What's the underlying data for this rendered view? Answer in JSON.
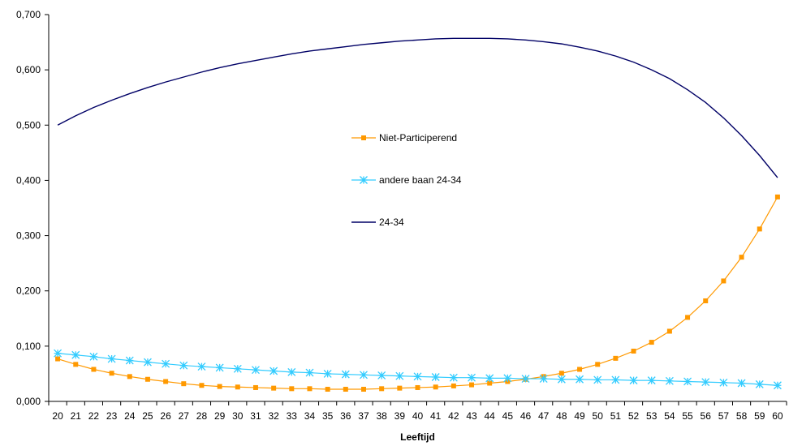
{
  "chart_data": {
    "type": "line",
    "title": "",
    "xlabel": "Leeftijd",
    "ylabel": "",
    "x": [
      20,
      21,
      22,
      23,
      24,
      25,
      26,
      27,
      28,
      29,
      30,
      31,
      32,
      33,
      34,
      35,
      36,
      37,
      38,
      39,
      40,
      41,
      42,
      43,
      44,
      45,
      46,
      47,
      48,
      49,
      50,
      51,
      52,
      53,
      54,
      55,
      56,
      57,
      58,
      59,
      60
    ],
    "ylim": [
      0,
      0.7
    ],
    "yticks": [
      "0,000",
      "0,100",
      "0,200",
      "0,300",
      "0,400",
      "0,500",
      "0,600",
      "0,700"
    ],
    "ytick_values": [
      0,
      0.1,
      0.2,
      0.3,
      0.4,
      0.5,
      0.6,
      0.7
    ],
    "grid": false,
    "legend_position": "center",
    "series": [
      {
        "name": "Niet-Participerend",
        "color": "#FF9900",
        "marker": "square",
        "values": [
          0.077,
          0.067,
          0.058,
          0.051,
          0.045,
          0.04,
          0.036,
          0.032,
          0.029,
          0.027,
          0.026,
          0.025,
          0.024,
          0.023,
          0.023,
          0.022,
          0.022,
          0.022,
          0.023,
          0.024,
          0.025,
          0.026,
          0.028,
          0.03,
          0.033,
          0.036,
          0.04,
          0.045,
          0.051,
          0.058,
          0.067,
          0.078,
          0.091,
          0.107,
          0.127,
          0.152,
          0.182,
          0.218,
          0.261,
          0.312,
          0.37
        ]
      },
      {
        "name": "andere baan 24-34",
        "color": "#33CCFF",
        "marker": "star",
        "values": [
          0.087,
          0.084,
          0.081,
          0.077,
          0.074,
          0.071,
          0.068,
          0.065,
          0.063,
          0.061,
          0.059,
          0.057,
          0.055,
          0.053,
          0.052,
          0.05,
          0.049,
          0.048,
          0.047,
          0.046,
          0.045,
          0.044,
          0.043,
          0.043,
          0.042,
          0.042,
          0.041,
          0.041,
          0.04,
          0.04,
          0.039,
          0.039,
          0.038,
          0.038,
          0.037,
          0.036,
          0.035,
          0.034,
          0.033,
          0.031,
          0.029
        ]
      },
      {
        "name": "24-34",
        "color": "#000066",
        "marker": "none",
        "values": [
          0.5,
          0.517,
          0.532,
          0.545,
          0.557,
          0.568,
          0.578,
          0.587,
          0.596,
          0.604,
          0.611,
          0.617,
          0.623,
          0.629,
          0.634,
          0.638,
          0.642,
          0.646,
          0.649,
          0.652,
          0.654,
          0.656,
          0.657,
          0.657,
          0.657,
          0.656,
          0.654,
          0.651,
          0.647,
          0.641,
          0.634,
          0.625,
          0.614,
          0.6,
          0.584,
          0.564,
          0.541,
          0.513,
          0.481,
          0.445,
          0.405
        ]
      }
    ]
  }
}
